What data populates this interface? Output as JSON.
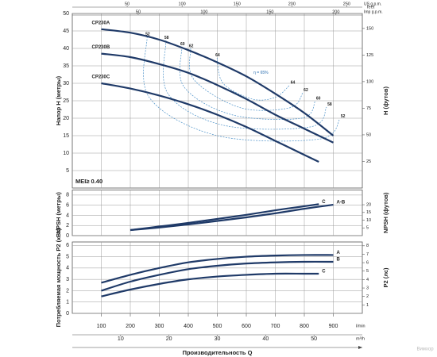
{
  "chart_data": [
    {
      "type": "line",
      "ylabel": "Напор H (метры)",
      "y2label": "H (футов)",
      "y2unit": "feet",
      "ylim": [
        0,
        50
      ],
      "yticks": [
        5,
        10,
        15,
        20,
        25,
        30,
        35,
        40,
        45,
        50
      ],
      "y2lim": [
        0,
        164.04
      ],
      "y2ticks": [
        25,
        50,
        75,
        100,
        125,
        150
      ],
      "xlim": [
        0,
        1000
      ],
      "xticks": [
        100,
        200,
        300,
        400,
        500,
        600,
        700,
        800,
        900
      ],
      "grid": true,
      "legend": "start",
      "top_axes": [
        {
          "label": "US g.p.m.",
          "lim": [
            0,
            264.2
          ],
          "ticks": [
            50,
            100,
            150,
            200,
            250
          ]
        },
        {
          "label": "Imp g.p.m.",
          "lim": [
            0,
            220
          ],
          "ticks": [
            50,
            100,
            150,
            200
          ]
        }
      ],
      "note": "MEI≥ 0.40",
      "series": [
        {
          "name": "CP230A",
          "color": "#1f3a68",
          "x": [
            100,
            200,
            300,
            400,
            500,
            600,
            700,
            800,
            900
          ],
          "values": [
            45.5,
            44.5,
            42.5,
            39.5,
            36,
            32,
            27,
            21.5,
            15
          ]
        },
        {
          "name": "CP230B",
          "color": "#1f3a68",
          "x": [
            100,
            200,
            300,
            400,
            500,
            600,
            700,
            800,
            900
          ],
          "values": [
            38.5,
            37.5,
            35.5,
            33,
            29.5,
            25.5,
            21,
            17,
            13
          ]
        },
        {
          "name": "CP230C",
          "color": "#1f3a68",
          "x": [
            100,
            200,
            300,
            400,
            500,
            600,
            700,
            800,
            850
          ],
          "values": [
            30,
            28.5,
            26.5,
            24,
            21,
            17.5,
            13.5,
            9.5,
            7.5
          ]
        }
      ],
      "efficiency": [
        {
          "name": "52",
          "x": [
            258,
            265,
            500,
            850,
            923
          ],
          "values": [
            43.4,
            26,
            15,
            14,
            19.8
          ]
        },
        {
          "name": "58",
          "x": [
            323,
            330,
            520,
            820,
            877
          ],
          "values": [
            42.3,
            27,
            18,
            17.5,
            23.2
          ]
        },
        {
          "name": "60",
          "x": [
            378,
            385,
            550,
            790,
            838
          ],
          "values": [
            40.5,
            29,
            21,
            20,
            25
          ]
        },
        {
          "name": "62",
          "x": [
            408,
            420,
            580,
            750,
            795
          ],
          "values": [
            40,
            31,
            23,
            23,
            27.3
          ]
        },
        {
          "name": "64",
          "x": [
            499,
            520,
            620,
            700,
            750
          ],
          "values": [
            37.3,
            30,
            25.5,
            26,
            29.5
          ]
        }
      ],
      "annotation": {
        "text": "η = 65%",
        "x": 625,
        "y": 33
      }
    },
    {
      "type": "line",
      "ylabel": "NPSH (метры)",
      "y2label": "NPSH (футов)",
      "ylim": [
        0,
        9
      ],
      "yticks": [
        0,
        2,
        4,
        6,
        8
      ],
      "y2lim": [
        0,
        29.53
      ],
      "y2ticks": [
        5,
        10,
        15,
        20
      ],
      "xlim": [
        0,
        1000
      ],
      "xticks": [
        100,
        200,
        300,
        400,
        500,
        600,
        700,
        800,
        900
      ],
      "grid": true,
      "legend": "end",
      "series": [
        {
          "name": "C",
          "color": "#1f3a68",
          "x": [
            200,
            300,
            400,
            500,
            600,
            700,
            800,
            850
          ],
          "values": [
            1.1,
            1.8,
            2.5,
            3.3,
            4.1,
            5.0,
            5.8,
            6.2
          ]
        },
        {
          "name": "A-B",
          "color": "#1f3a68",
          "x": [
            200,
            300,
            400,
            500,
            600,
            700,
            800,
            900
          ],
          "values": [
            1.1,
            1.6,
            2.2,
            2.9,
            3.6,
            4.4,
            5.3,
            6.1
          ]
        }
      ]
    },
    {
      "type": "line",
      "ylabel": "Потребляемая мощность P2 (кВт)",
      "y2label": "P2 (лс)",
      "ylim": [
        0,
        6.3
      ],
      "yticks": [
        0,
        1,
        2,
        3,
        4,
        5,
        6
      ],
      "y2lim": [
        0,
        8.45
      ],
      "y2ticks": [
        1,
        2,
        3,
        4,
        5,
        6,
        7,
        8
      ],
      "xlim": [
        0,
        1000
      ],
      "xticks": [
        100,
        200,
        300,
        400,
        500,
        600,
        700,
        800,
        900
      ],
      "xunit": "l/min",
      "grid": true,
      "legend": "end",
      "bottom_axes": [
        {
          "label": "m³/h",
          "lim": [
            0,
            60
          ],
          "ticks": [
            10,
            20,
            30,
            40,
            50
          ]
        }
      ],
      "xlabel": "Производительность Q",
      "series": [
        {
          "name": "A",
          "color": "#1f3a68",
          "x": [
            100,
            200,
            300,
            400,
            500,
            600,
            700,
            800,
            900
          ],
          "values": [
            2.7,
            3.4,
            4.0,
            4.5,
            4.8,
            5.0,
            5.1,
            5.15,
            5.15
          ]
        },
        {
          "name": "B",
          "color": "#1f3a68",
          "x": [
            100,
            200,
            300,
            400,
            500,
            600,
            700,
            800,
            900
          ],
          "values": [
            2.0,
            2.8,
            3.4,
            3.9,
            4.2,
            4.4,
            4.5,
            4.55,
            4.55
          ]
        },
        {
          "name": "C",
          "color": "#1f3a68",
          "x": [
            100,
            200,
            300,
            400,
            500,
            600,
            700,
            800,
            850
          ],
          "values": [
            1.5,
            2.1,
            2.6,
            3.0,
            3.25,
            3.4,
            3.5,
            3.5,
            3.5
          ]
        }
      ]
    }
  ],
  "watermark": "Вимхор"
}
